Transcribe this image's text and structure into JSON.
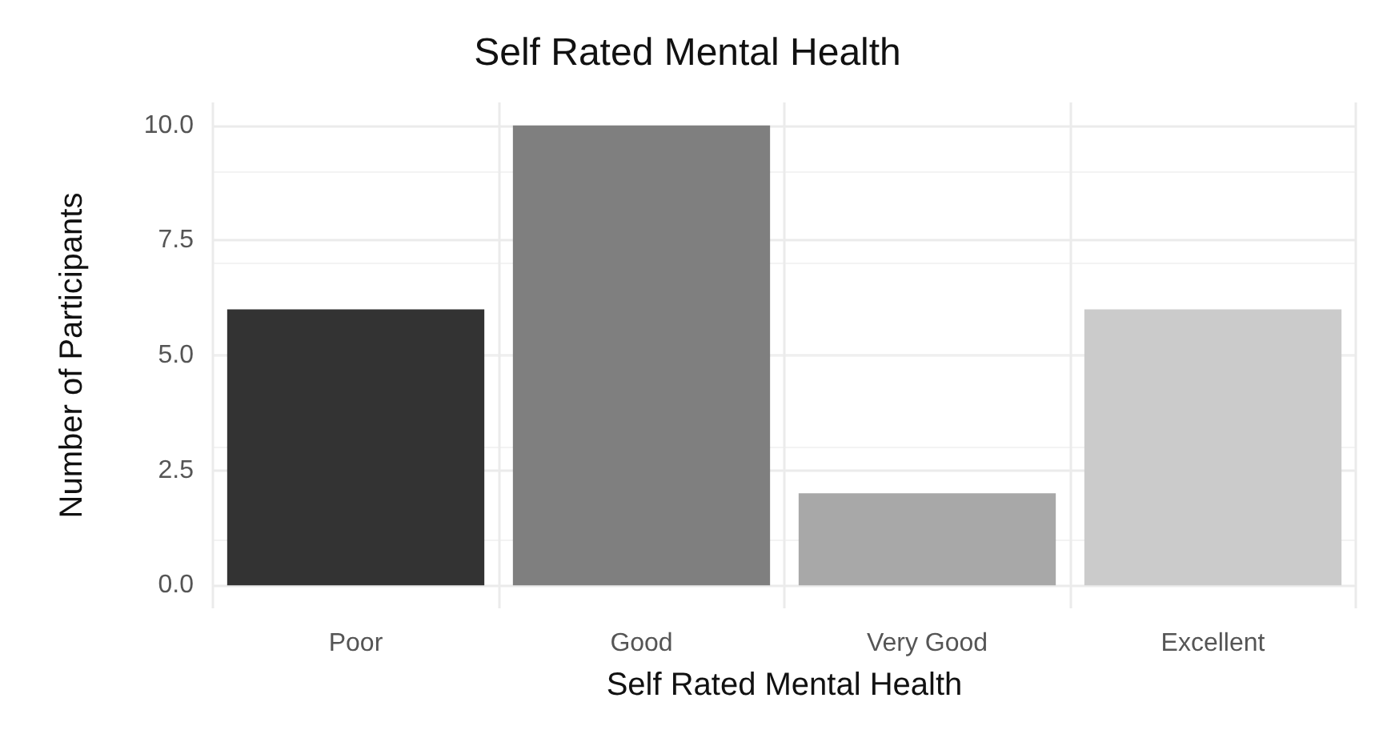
{
  "chart_data": {
    "type": "bar",
    "title": "Self Rated Mental Health",
    "xlabel": "Self Rated Mental Health",
    "ylabel": "Number of Participants",
    "categories": [
      "Poor",
      "Good",
      "Very Good",
      "Excellent"
    ],
    "values": [
      6,
      10,
      2,
      6
    ],
    "colors": [
      "#333333",
      "#7f7f7f",
      "#a8a8a8",
      "#cbcbcb"
    ],
    "ylim": [
      -0.5,
      10.5
    ],
    "yticks": [
      {
        "value": 0,
        "label": "0.0"
      },
      {
        "value": 2.5,
        "label": "2.5"
      },
      {
        "value": 5,
        "label": "5.0"
      },
      {
        "value": 7.5,
        "label": "7.5"
      },
      {
        "value": 10,
        "label": "10.0"
      }
    ],
    "grid": true
  }
}
